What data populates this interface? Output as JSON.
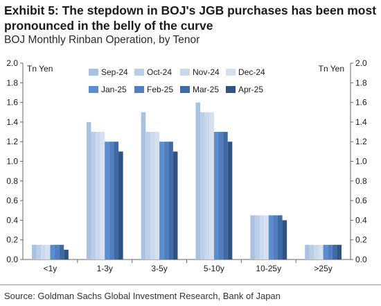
{
  "title": "Exhibit 5: The stepdown in BOJ's JGB purchases has been most pronounced in the belly of the curve",
  "subtitle": "BOJ Monthly Rinban Operation, by Tenor",
  "source": "Source: Goldman Sachs Global Investment Research, Bank of Japan",
  "chart_data": {
    "type": "bar",
    "title": "",
    "xlabel": "",
    "ylabel": "Tn Yen",
    "ylabel_right": "Tn Yen",
    "ylim": [
      0,
      2.0
    ],
    "ytick_step": 0.2,
    "yticks": [
      "0.0",
      "0.2",
      "0.4",
      "0.6",
      "0.8",
      "1.0",
      "1.2",
      "1.4",
      "1.6",
      "1.8",
      "2.0"
    ],
    "grid": false,
    "legend_position": "top-center",
    "categories": [
      "<1y",
      "1-3y",
      "3-5y",
      "5-10y",
      "10-25y",
      ">25y"
    ],
    "series": [
      {
        "name": "Sep-24",
        "color": "#aac2e2",
        "values": [
          0.15,
          1.4,
          1.5,
          1.6,
          0.45,
          0.15
        ]
      },
      {
        "name": "Oct-24",
        "color": "#bccde6",
        "values": [
          0.15,
          1.3,
          1.3,
          1.5,
          0.45,
          0.15
        ]
      },
      {
        "name": "Nov-24",
        "color": "#cbd9ee",
        "values": [
          0.15,
          1.3,
          1.3,
          1.5,
          0.45,
          0.15
        ]
      },
      {
        "name": "Dec-24",
        "color": "#d6e0ef",
        "values": [
          0.15,
          1.3,
          1.3,
          1.5,
          0.45,
          0.15
        ]
      },
      {
        "name": "Jan-25",
        "color": "#5b8dcf",
        "values": [
          0.15,
          1.2,
          1.2,
          1.3,
          0.45,
          0.15
        ]
      },
      {
        "name": "Feb-25",
        "color": "#4f7fbf",
        "values": [
          0.15,
          1.2,
          1.2,
          1.3,
          0.45,
          0.15
        ]
      },
      {
        "name": "Mar-25",
        "color": "#3f6aa6",
        "values": [
          0.15,
          1.2,
          1.2,
          1.3,
          0.45,
          0.15
        ]
      },
      {
        "name": "Apr-25",
        "color": "#2f5483",
        "values": [
          0.1,
          1.1,
          1.1,
          1.2,
          0.4,
          0.15
        ]
      }
    ]
  }
}
